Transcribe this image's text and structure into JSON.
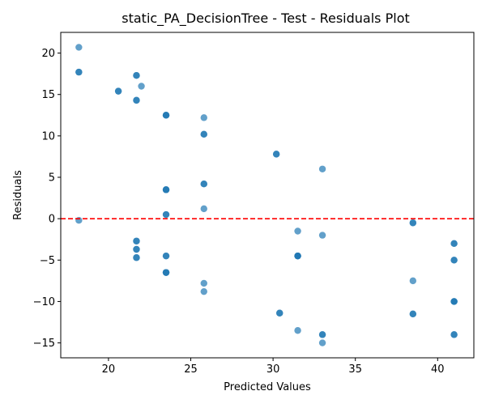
{
  "chart_data": {
    "type": "scatter",
    "title": "static_PA_DecisionTree - Test - Residuals Plot",
    "xlabel": "Predicted Values",
    "ylabel": "Residuals",
    "xlim": [
      17.1,
      42.2
    ],
    "ylim": [
      -16.8,
      22.5
    ],
    "xticks": [
      20,
      25,
      30,
      35,
      40
    ],
    "yticks": [
      -15,
      -10,
      -5,
      0,
      5,
      10,
      15,
      20
    ],
    "grid": false,
    "reference_line": {
      "y": 0,
      "color": "#ff0000",
      "style": "dashed"
    },
    "point_color": "#1f77b4",
    "point_alpha": 0.7,
    "points": [
      {
        "x": 18.2,
        "y": 20.7
      },
      {
        "x": 18.2,
        "y": 17.7
      },
      {
        "x": 18.2,
        "y": 17.7
      },
      {
        "x": 18.2,
        "y": -0.2
      },
      {
        "x": 20.6,
        "y": 15.4
      },
      {
        "x": 20.6,
        "y": 15.4
      },
      {
        "x": 21.7,
        "y": 17.3
      },
      {
        "x": 21.7,
        "y": 17.3
      },
      {
        "x": 21.7,
        "y": 14.3
      },
      {
        "x": 21.7,
        "y": 14.3
      },
      {
        "x": 22.0,
        "y": 16.0
      },
      {
        "x": 21.7,
        "y": -2.7
      },
      {
        "x": 21.7,
        "y": -2.7
      },
      {
        "x": 21.7,
        "y": -3.7
      },
      {
        "x": 21.7,
        "y": -3.7
      },
      {
        "x": 21.7,
        "y": -4.7
      },
      {
        "x": 21.7,
        "y": -4.7
      },
      {
        "x": 23.5,
        "y": 12.5
      },
      {
        "x": 23.5,
        "y": 12.5
      },
      {
        "x": 23.5,
        "y": 12.5
      },
      {
        "x": 23.5,
        "y": 3.5
      },
      {
        "x": 23.5,
        "y": 3.5
      },
      {
        "x": 23.5,
        "y": 3.5
      },
      {
        "x": 23.5,
        "y": 0.5
      },
      {
        "x": 23.5,
        "y": 0.5
      },
      {
        "x": 23.5,
        "y": -4.5
      },
      {
        "x": 23.5,
        "y": -4.5
      },
      {
        "x": 23.5,
        "y": -6.5
      },
      {
        "x": 23.5,
        "y": -6.5
      },
      {
        "x": 23.5,
        "y": -6.5
      },
      {
        "x": 25.8,
        "y": 12.2
      },
      {
        "x": 25.8,
        "y": 10.2
      },
      {
        "x": 25.8,
        "y": 10.2
      },
      {
        "x": 25.8,
        "y": 4.2
      },
      {
        "x": 25.8,
        "y": 4.2
      },
      {
        "x": 25.8,
        "y": 1.2
      },
      {
        "x": 25.8,
        "y": -7.8
      },
      {
        "x": 25.8,
        "y": -8.8
      },
      {
        "x": 30.2,
        "y": 7.8
      },
      {
        "x": 30.2,
        "y": 7.8
      },
      {
        "x": 30.4,
        "y": -11.4
      },
      {
        "x": 30.4,
        "y": -11.4
      },
      {
        "x": 31.5,
        "y": -1.5
      },
      {
        "x": 31.5,
        "y": -4.5
      },
      {
        "x": 31.5,
        "y": -4.5
      },
      {
        "x": 31.5,
        "y": -4.5
      },
      {
        "x": 31.5,
        "y": -4.5
      },
      {
        "x": 31.5,
        "y": -13.5
      },
      {
        "x": 33.0,
        "y": 6.0
      },
      {
        "x": 33.0,
        "y": -2.0
      },
      {
        "x": 33.0,
        "y": -14.0
      },
      {
        "x": 33.0,
        "y": -14.0
      },
      {
        "x": 33.0,
        "y": -15.0
      },
      {
        "x": 38.5,
        "y": -0.5
      },
      {
        "x": 38.5,
        "y": -0.5
      },
      {
        "x": 38.5,
        "y": -7.5
      },
      {
        "x": 38.5,
        "y": -11.5
      },
      {
        "x": 38.5,
        "y": -11.5
      },
      {
        "x": 41.0,
        "y": -3.0
      },
      {
        "x": 41.0,
        "y": -3.0
      },
      {
        "x": 41.0,
        "y": -5.0
      },
      {
        "x": 41.0,
        "y": -5.0
      },
      {
        "x": 41.0,
        "y": -10.0
      },
      {
        "x": 41.0,
        "y": -10.0
      },
      {
        "x": 41.0,
        "y": -10.0
      },
      {
        "x": 41.0,
        "y": -14.0
      },
      {
        "x": 41.0,
        "y": -14.0
      }
    ]
  }
}
